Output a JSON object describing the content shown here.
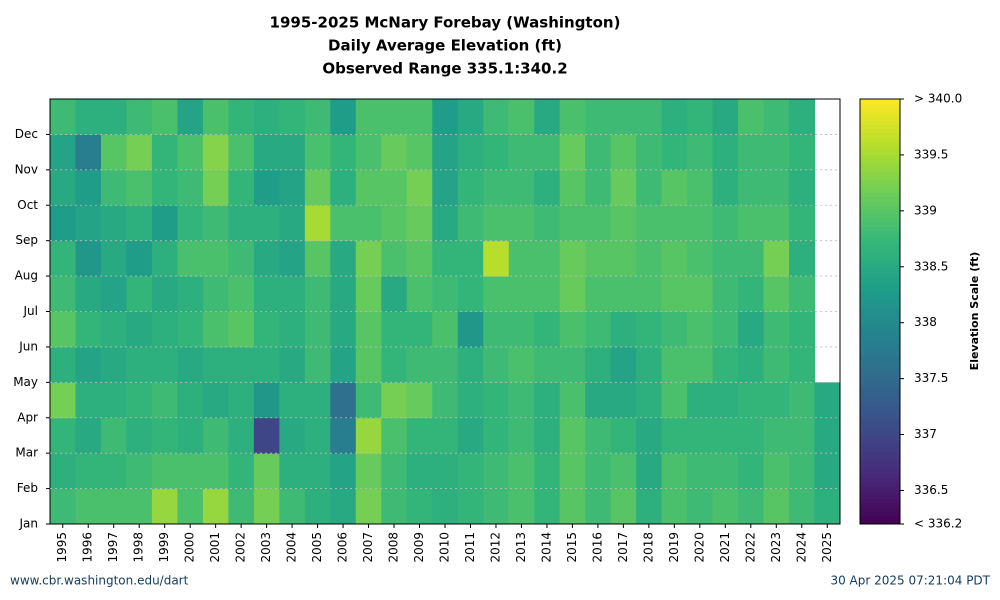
{
  "chart_data": {
    "type": "heatmap",
    "title": "1995-2025 McNary Forebay (Washington)",
    "subtitle": [
      "Daily Average Elevation (ft)",
      "Observed Range 335.1:340.2"
    ],
    "x": [
      "1995",
      "1996",
      "1997",
      "1998",
      "1999",
      "2000",
      "2001",
      "2002",
      "2003",
      "2004",
      "2005",
      "2006",
      "2007",
      "2008",
      "2009",
      "2010",
      "2011",
      "2012",
      "2013",
      "2014",
      "2015",
      "2016",
      "2017",
      "2018",
      "2019",
      "2020",
      "2021",
      "2022",
      "2023",
      "2024",
      "2025"
    ],
    "y": [
      "Jan",
      "Feb",
      "Mar",
      "Apr",
      "May",
      "Jun",
      "Jul",
      "Aug",
      "Sep",
      "Oct",
      "Nov",
      "Dec"
    ],
    "z": [
      [
        338.8,
        338.6,
        338.7,
        339.2,
        338.6,
        339.0,
        338.8,
        338.7,
        338.3,
        338.5,
        338.4,
        338.8
      ],
      [
        338.9,
        338.7,
        338.5,
        338.6,
        338.4,
        338.7,
        338.5,
        338.2,
        338.4,
        338.3,
        337.8,
        338.6
      ],
      [
        338.9,
        338.7,
        338.8,
        338.6,
        338.5,
        338.6,
        338.4,
        338.5,
        338.5,
        338.8,
        339.0,
        338.6
      ],
      [
        338.9,
        338.8,
        338.6,
        338.7,
        338.6,
        338.5,
        338.7,
        338.3,
        338.6,
        338.9,
        339.2,
        338.8
      ],
      [
        339.4,
        338.9,
        338.7,
        338.8,
        338.6,
        338.6,
        338.5,
        338.6,
        338.3,
        338.7,
        338.7,
        338.9
      ],
      [
        338.9,
        338.9,
        338.6,
        338.6,
        338.5,
        338.7,
        338.6,
        338.9,
        338.7,
        338.8,
        338.9,
        338.4
      ],
      [
        339.4,
        338.9,
        338.8,
        338.5,
        338.6,
        338.9,
        338.8,
        338.9,
        338.8,
        339.2,
        339.3,
        338.9
      ],
      [
        338.8,
        338.7,
        338.6,
        338.6,
        338.6,
        339.0,
        338.9,
        338.8,
        338.6,
        338.7,
        338.9,
        338.7
      ],
      [
        339.2,
        339.1,
        337.0,
        338.2,
        338.6,
        338.7,
        338.6,
        338.5,
        338.6,
        338.3,
        338.5,
        338.6
      ],
      [
        338.8,
        338.6,
        338.5,
        338.6,
        338.5,
        338.6,
        338.6,
        338.4,
        338.5,
        338.4,
        338.5,
        338.7
      ],
      [
        338.6,
        338.6,
        338.6,
        338.6,
        338.8,
        338.8,
        338.8,
        339.0,
        339.5,
        339.1,
        338.9,
        338.8
      ],
      [
        338.5,
        338.4,
        337.8,
        337.6,
        338.4,
        338.5,
        338.5,
        338.5,
        338.9,
        338.6,
        338.7,
        338.3
      ],
      [
        339.2,
        339.1,
        339.4,
        338.8,
        339.0,
        339.0,
        339.1,
        339.2,
        338.9,
        339.0,
        338.9,
        338.9
      ],
      [
        338.8,
        338.8,
        338.9,
        339.2,
        338.7,
        338.7,
        338.5,
        338.9,
        339.0,
        339.0,
        339.1,
        338.9
      ],
      [
        338.7,
        338.6,
        338.7,
        339.1,
        338.8,
        338.7,
        338.9,
        339.0,
        339.1,
        339.2,
        339.0,
        338.9
      ],
      [
        338.6,
        338.6,
        338.7,
        338.8,
        338.8,
        338.9,
        338.8,
        338.7,
        338.5,
        338.4,
        338.4,
        338.3
      ],
      [
        338.7,
        338.7,
        338.5,
        338.6,
        338.6,
        338.2,
        338.7,
        338.7,
        338.8,
        338.7,
        338.6,
        338.5
      ],
      [
        338.8,
        338.8,
        338.7,
        338.7,
        338.8,
        338.8,
        338.9,
        339.6,
        338.9,
        338.8,
        338.7,
        338.8
      ],
      [
        338.9,
        338.9,
        338.8,
        338.8,
        338.9,
        338.8,
        338.9,
        338.9,
        338.9,
        338.8,
        338.8,
        338.9
      ],
      [
        338.7,
        338.7,
        338.6,
        338.6,
        338.8,
        338.7,
        338.9,
        338.9,
        338.8,
        338.6,
        338.8,
        338.5
      ],
      [
        339.0,
        339.0,
        339.0,
        338.9,
        338.8,
        338.9,
        339.1,
        339.1,
        338.9,
        339.0,
        339.1,
        338.9
      ],
      [
        338.8,
        338.8,
        338.8,
        338.5,
        338.6,
        338.8,
        338.9,
        339.0,
        338.9,
        338.8,
        338.8,
        338.8
      ],
      [
        339.0,
        338.9,
        338.7,
        338.5,
        338.4,
        338.6,
        338.9,
        339.0,
        339.0,
        339.1,
        339.0,
        338.8
      ],
      [
        338.6,
        338.5,
        338.5,
        338.6,
        338.6,
        338.7,
        338.9,
        338.9,
        338.9,
        338.8,
        338.8,
        338.8
      ],
      [
        338.9,
        338.9,
        338.7,
        338.9,
        338.9,
        338.8,
        339.0,
        339.0,
        338.9,
        339.0,
        338.7,
        338.6
      ],
      [
        338.8,
        338.8,
        338.7,
        338.6,
        338.9,
        338.9,
        339.0,
        338.9,
        338.9,
        338.9,
        338.8,
        338.7
      ],
      [
        338.9,
        338.8,
        338.7,
        338.6,
        338.7,
        338.8,
        338.8,
        338.8,
        338.8,
        338.6,
        338.6,
        338.5
      ],
      [
        338.8,
        338.7,
        338.7,
        338.7,
        338.6,
        338.5,
        338.7,
        338.8,
        338.9,
        338.8,
        338.8,
        338.9
      ],
      [
        339.0,
        338.9,
        338.8,
        338.7,
        338.8,
        338.8,
        339.0,
        339.2,
        338.9,
        338.8,
        338.8,
        338.8
      ],
      [
        338.8,
        338.8,
        338.8,
        338.8,
        338.7,
        338.7,
        338.8,
        338.6,
        338.7,
        338.6,
        338.7,
        338.6
      ],
      [
        338.6,
        338.5,
        338.5,
        338.5,
        null,
        null,
        null,
        null,
        null,
        null,
        null,
        null
      ]
    ],
    "zlim": [
      336.2,
      340.0
    ],
    "zticks": [
      {
        "value": 336.2,
        "label": "< 336.2"
      },
      336.5,
      337,
      337.5,
      338,
      338.5,
      339,
      339.5,
      {
        "value": 340.0,
        "label": "> 340.0"
      }
    ],
    "colorbar_label": "Elevation Scale (ft)",
    "colormap": "viridis",
    "grid": true,
    "footer_left": "www.cbr.washington.edu/dart",
    "footer_right": "30 Apr 2025 07:21:04 PDT"
  }
}
